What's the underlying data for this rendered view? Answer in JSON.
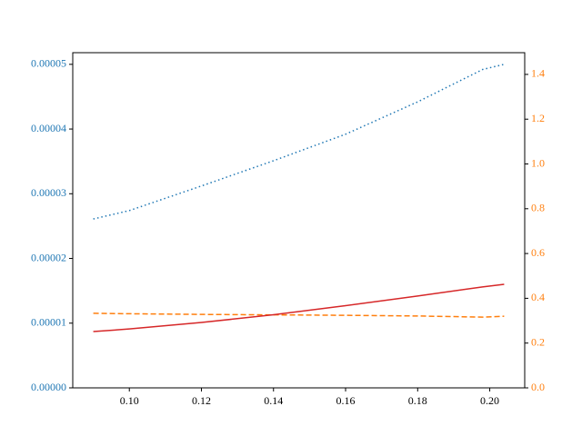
{
  "chart_data": {
    "type": "line",
    "x": [
      0.09,
      0.1,
      0.12,
      0.14,
      0.16,
      0.18,
      0.198,
      0.204
    ],
    "series": [
      {
        "color": "#1f77b4",
        "linestyle": "dotted",
        "axis": "y",
        "values": [
          2.61e-05,
          2.74e-05,
          3.12e-05,
          3.51e-05,
          3.92e-05,
          4.42e-05,
          4.92e-05,
          5e-05
        ]
      },
      {
        "color": "#ff7f0e",
        "linestyle": "dashed",
        "axis": "y2",
        "values": [
          0.333,
          0.331,
          0.328,
          0.326,
          0.324,
          0.321,
          0.316,
          0.32
        ]
      },
      {
        "color": "#d62728",
        "linestyle": "solid",
        "axis": "y",
        "values": [
          8.7e-06,
          9.1e-06,
          1.01e-05,
          1.13e-05,
          1.27e-05,
          1.42e-05,
          1.56e-05,
          1.6e-05
        ]
      }
    ],
    "xlim": [
      0.0843,
      0.2097
    ],
    "xticks": [
      {
        "value": 0.1,
        "label": "0.10"
      },
      {
        "value": 0.12,
        "label": "0.12"
      },
      {
        "value": 0.14,
        "label": "0.14"
      },
      {
        "value": 0.16,
        "label": "0.16"
      },
      {
        "value": 0.18,
        "label": "0.18"
      },
      {
        "value": 0.2,
        "label": "0.20"
      }
    ],
    "ylim": [
      0,
      5.18e-05
    ],
    "yticks": [
      {
        "value": 0,
        "label": "0.00000"
      },
      {
        "value": 1e-05,
        "label": "0.00001"
      },
      {
        "value": 2e-05,
        "label": "0.00002"
      },
      {
        "value": 3e-05,
        "label": "0.00003"
      },
      {
        "value": 4e-05,
        "label": "0.00004"
      },
      {
        "value": 5e-05,
        "label": "0.00005"
      }
    ],
    "y_color": "#1f77b4",
    "y2lim": [
      0,
      1.497
    ],
    "y2ticks": [
      {
        "value": 0,
        "label": "0.0"
      },
      {
        "value": 0.2,
        "label": "0.2"
      },
      {
        "value": 0.4,
        "label": "0.4"
      },
      {
        "value": 0.6,
        "label": "0.6"
      },
      {
        "value": 0.8,
        "label": "0.8"
      },
      {
        "value": 1.0,
        "label": "1.0"
      },
      {
        "value": 1.2,
        "label": "1.2"
      },
      {
        "value": 1.4,
        "label": "1.4"
      }
    ],
    "y2_color": "#ff7f0e",
    "grid": false
  }
}
